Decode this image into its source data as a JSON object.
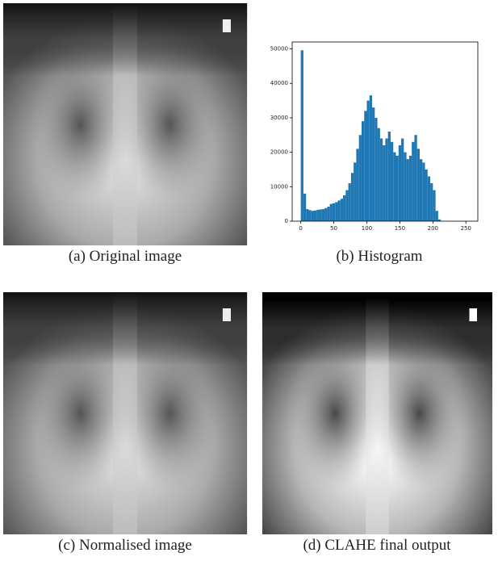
{
  "figure": {
    "panels": [
      {
        "caption": "(a) Original image"
      },
      {
        "caption": "(b) Histogram"
      },
      {
        "caption": "(c) Normalised image"
      },
      {
        "caption": "(d) CLAHE final output"
      }
    ]
  },
  "chart_data": {
    "type": "histogram",
    "color": "#1f77b4",
    "bins": [
      0,
      4,
      8,
      12,
      16,
      20,
      24,
      28,
      32,
      36,
      40,
      44,
      48,
      52,
      56,
      60,
      64,
      68,
      72,
      76,
      80,
      84,
      88,
      92,
      96,
      100,
      104,
      108,
      112,
      116,
      120,
      124,
      128,
      132,
      136,
      140,
      144,
      148,
      152,
      156,
      160,
      164,
      168,
      172,
      176,
      180,
      184,
      188,
      192,
      196,
      200,
      204,
      208,
      212
    ],
    "counts": [
      49600,
      8000,
      3500,
      3200,
      3000,
      3100,
      3300,
      3400,
      3500,
      3800,
      4200,
      5000,
      5200,
      5500,
      6000,
      6500,
      7500,
      9000,
      11000,
      14000,
      17000,
      21000,
      25000,
      29000,
      32000,
      35000,
      36500,
      33000,
      30000,
      27000,
      24000,
      22000,
      24000,
      26000,
      23000,
      20000,
      19000,
      22000,
      24000,
      20000,
      18000,
      19000,
      23000,
      25000,
      21000,
      18000,
      17000,
      15000,
      13000,
      11000,
      9000,
      3000,
      500
    ],
    "xlim": [
      -13,
      268
    ],
    "ylim": [
      0,
      52000
    ],
    "xticks": [
      0,
      50,
      100,
      150,
      200,
      250
    ],
    "yticks": [
      0,
      10000,
      20000,
      30000,
      40000,
      50000
    ]
  }
}
